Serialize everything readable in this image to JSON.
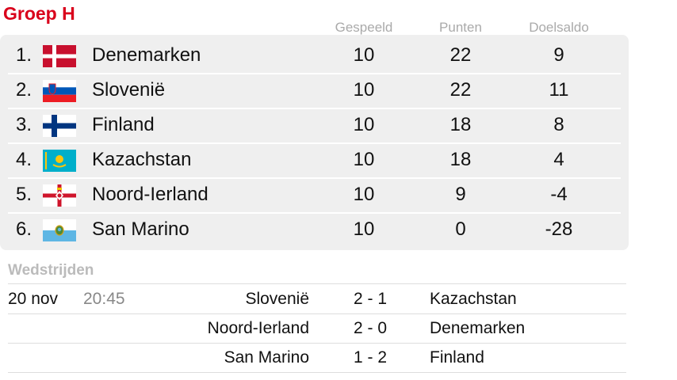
{
  "header": {
    "title": "Groep H",
    "columns": [
      "Gespeeld",
      "Punten",
      "Doelsaldo"
    ]
  },
  "table": {
    "rows": [
      [
        "1.",
        "Denemarken",
        10,
        22,
        9
      ],
      [
        "2.",
        "Slovenië",
        10,
        22,
        11
      ],
      [
        "3.",
        "Finland",
        10,
        18,
        8
      ],
      [
        "4.",
        "Kazachstan",
        10,
        18,
        4
      ],
      [
        "5.",
        "Noord-Ierland",
        10,
        9,
        -4
      ],
      [
        "6.",
        "San Marino",
        10,
        0,
        -28
      ]
    ]
  },
  "matches": {
    "title": "Wedstrijden",
    "rows": [
      [
        "20 nov",
        "20:45",
        "Slovenië",
        "2 - 1",
        "Kazachstan"
      ],
      [
        null,
        null,
        "Noord-Ierland",
        "2 - 0",
        "Denemarken"
      ],
      [
        null,
        null,
        "San Marino",
        "1 - 2",
        "Finland"
      ]
    ]
  }
}
